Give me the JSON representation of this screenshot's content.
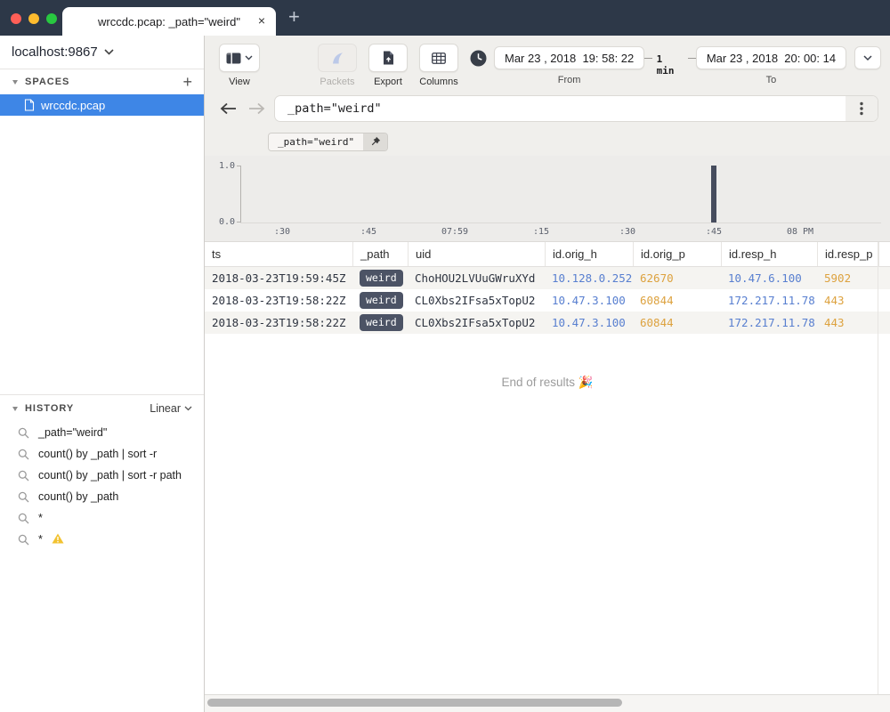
{
  "window": {
    "tab_title": "wrccdc.pcap: _path=\"weird\"",
    "close_label": "×",
    "new_tab_label": "+"
  },
  "sidebar": {
    "host": "localhost:9867",
    "spaces": {
      "header": "SPACES",
      "add_label": "+",
      "items": [
        {
          "label": "wrccdc.pcap",
          "selected": true
        }
      ]
    },
    "history": {
      "header": "HISTORY",
      "mode": "Linear",
      "items": [
        {
          "query": "_path=\"weird\"",
          "warning": false
        },
        {
          "query": "count() by _path | sort -r",
          "warning": false
        },
        {
          "query": "count() by _path | sort -r path",
          "warning": false
        },
        {
          "query": "count() by _path",
          "warning": false
        },
        {
          "query": "*",
          "warning": false
        },
        {
          "query": "*",
          "warning": true
        }
      ]
    }
  },
  "toolbar": {
    "view_label": "View",
    "packets_label": "Packets",
    "export_label": "Export",
    "columns_label": "Columns",
    "timespan": {
      "from_value": "Mar 23 , 2018  19: 58: 22",
      "from_label": "From",
      "duration": "1 min",
      "to_value": "Mar 23 , 2018  20: 00: 14",
      "to_label": "To"
    }
  },
  "search": {
    "query": "_path=\"weird\"",
    "pinned_filter": "_path=\"weird\""
  },
  "chart_data": {
    "type": "bar",
    "title": "",
    "xlabel": "",
    "ylabel": "",
    "x_ticks": [
      ":30",
      ":45",
      "07:59",
      ":15",
      ":30",
      ":45",
      "08 PM"
    ],
    "y_ticks": [
      "0.0",
      "1.0"
    ],
    "ylim": [
      0,
      1
    ],
    "bars": [
      {
        "tick_index": 5,
        "time": "2018-03-23T19:59:45Z",
        "value": 1.0
      }
    ],
    "grid": false,
    "legend": "none"
  },
  "results": {
    "columns": [
      {
        "label": "ts",
        "kind": "ts"
      },
      {
        "label": "_path",
        "kind": "badge"
      },
      {
        "label": "uid",
        "kind": "uid"
      },
      {
        "label": "id.orig_h",
        "kind": "addr"
      },
      {
        "label": "id.orig_p",
        "kind": "port"
      },
      {
        "label": "id.resp_h",
        "kind": "addr"
      },
      {
        "label": "id.resp_p",
        "kind": "port"
      }
    ],
    "rows": [
      [
        "2018-03-23T19:59:45Z",
        "weird",
        "ChoHOU2LVUuGWruXYd",
        "10.128.0.252",
        "62670",
        "10.47.6.100",
        "5902"
      ],
      [
        "2018-03-23T19:58:22Z",
        "weird",
        "CL0Xbs2IFsa5xTopU2",
        "10.47.3.100",
        "60844",
        "172.217.11.78",
        "443"
      ],
      [
        "2018-03-23T19:58:22Z",
        "weird",
        "CL0Xbs2IFsa5xTopU2",
        "10.47.3.100",
        "60844",
        "172.217.11.78",
        "443"
      ]
    ],
    "end_message": "End of results 🎉"
  },
  "colors": {
    "titlebar": "#2d3848",
    "selection_blue": "#3e86e6",
    "badge_bg": "#4c5365",
    "address_blue": "#587fd0",
    "port_orange": "#dda23f",
    "bar_color": "#464c5d",
    "warning_yellow": "#f2c230",
    "toolbar_bg": "#f0efec"
  }
}
